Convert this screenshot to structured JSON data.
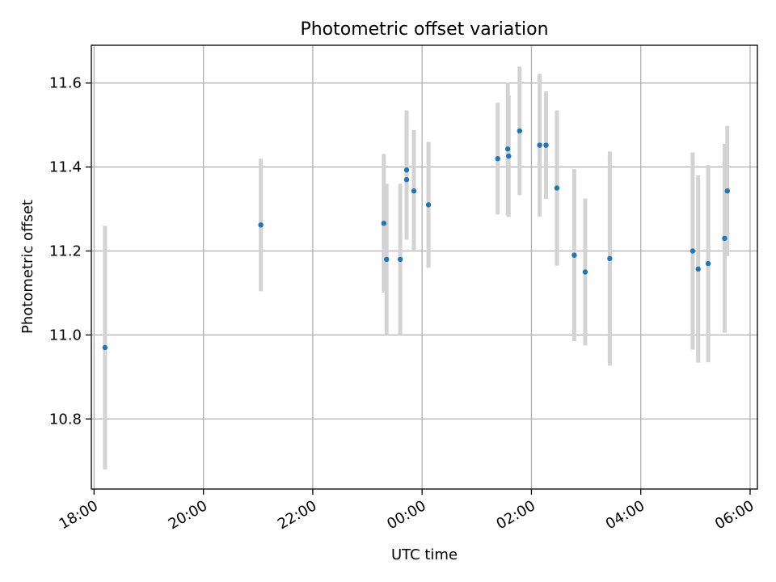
{
  "chart_data": {
    "type": "scatter",
    "title": "Photometric offset variation",
    "xlabel": "UTC time",
    "ylabel": "Photometric offset",
    "x_ticks": [
      "18:00",
      "20:00",
      "22:00",
      "00:00",
      "02:00",
      "04:00",
      "06:00"
    ],
    "y_ticks": [
      "10.8",
      "11.0",
      "11.2",
      "11.4",
      "11.6"
    ],
    "xlim": [
      "17:57",
      "06:08"
    ],
    "ylim": [
      10.633,
      11.69
    ],
    "grid": true,
    "colors": {
      "point": "#1f77b4",
      "errorbar": "#d3d3d3",
      "grid": "#b0b0b0"
    },
    "series": [
      {
        "points": [
          {
            "x": "18:12",
            "y": 10.97,
            "err": 0.29
          },
          {
            "x": "21:03",
            "y": 11.262,
            "err": 0.158
          },
          {
            "x": "23:18",
            "y": 11.266,
            "err": 0.165
          },
          {
            "x": "23:21",
            "y": 11.18,
            "err": 0.18
          },
          {
            "x": "23:36",
            "y": 11.18,
            "err": 0.18
          },
          {
            "x": "23:43",
            "y": 11.393,
            "err": 0.142
          },
          {
            "x": "23:43",
            "y": 11.37,
            "err": 0.143
          },
          {
            "x": "23:51",
            "y": 11.343,
            "err": 0.145
          },
          {
            "x": "00:07",
            "y": 11.31,
            "err": 0.15
          },
          {
            "x": "01:23",
            "y": 11.42,
            "err": 0.133
          },
          {
            "x": "01:34",
            "y": 11.443,
            "err": 0.158
          },
          {
            "x": "01:35",
            "y": 11.426,
            "err": 0.145
          },
          {
            "x": "01:47",
            "y": 11.486,
            "err": 0.153
          },
          {
            "x": "02:09",
            "y": 11.452,
            "err": 0.17
          },
          {
            "x": "02:16",
            "y": 11.452,
            "err": 0.128
          },
          {
            "x": "02:28",
            "y": 11.35,
            "err": 0.185
          },
          {
            "x": "02:47",
            "y": 11.19,
            "err": 0.205
          },
          {
            "x": "02:59",
            "y": 11.15,
            "err": 0.175
          },
          {
            "x": "03:26",
            "y": 11.182,
            "err": 0.255
          },
          {
            "x": "04:57",
            "y": 11.2,
            "err": 0.235
          },
          {
            "x": "05:03",
            "y": 11.157,
            "err": 0.223
          },
          {
            "x": "05:14",
            "y": 11.17,
            "err": 0.235
          },
          {
            "x": "05:32",
            "y": 11.23,
            "err": 0.225
          },
          {
            "x": "05:35",
            "y": 11.343,
            "err": 0.155
          }
        ]
      }
    ]
  }
}
